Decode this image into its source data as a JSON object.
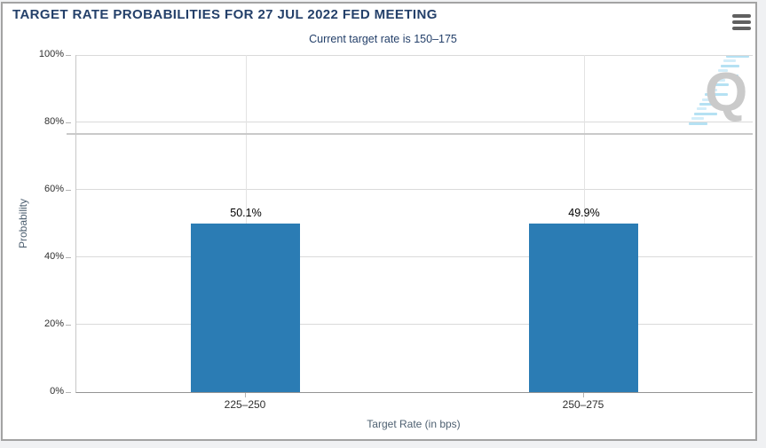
{
  "header": {
    "menu_icon": "hamburger-menu-icon"
  },
  "watermark": {
    "letter": "Q"
  },
  "chart_data": {
    "type": "bar",
    "title": "TARGET RATE PROBABILITIES FOR 27 JUL 2022 FED MEETING",
    "subtitle": "Current target rate is 150–175",
    "categories": [
      "225–250",
      "250–275"
    ],
    "values": [
      50.1,
      49.9
    ],
    "data_labels": [
      "50.1%",
      "49.9%"
    ],
    "xlabel": "Target Rate (in bps)",
    "ylabel": "Probability",
    "ylim": [
      0,
      100
    ],
    "yticks": [
      0,
      20,
      40,
      60,
      80,
      100
    ],
    "ytick_labels": [
      "0%",
      "20%",
      "40%",
      "60%",
      "80%",
      "100%"
    ],
    "grid": true,
    "legend_position": "none",
    "bar_color": "#2b7cb4",
    "colors": {
      "title_navy": "#24406a",
      "bar_blue": "#2b7cb4",
      "gridline": "#dadada"
    }
  }
}
